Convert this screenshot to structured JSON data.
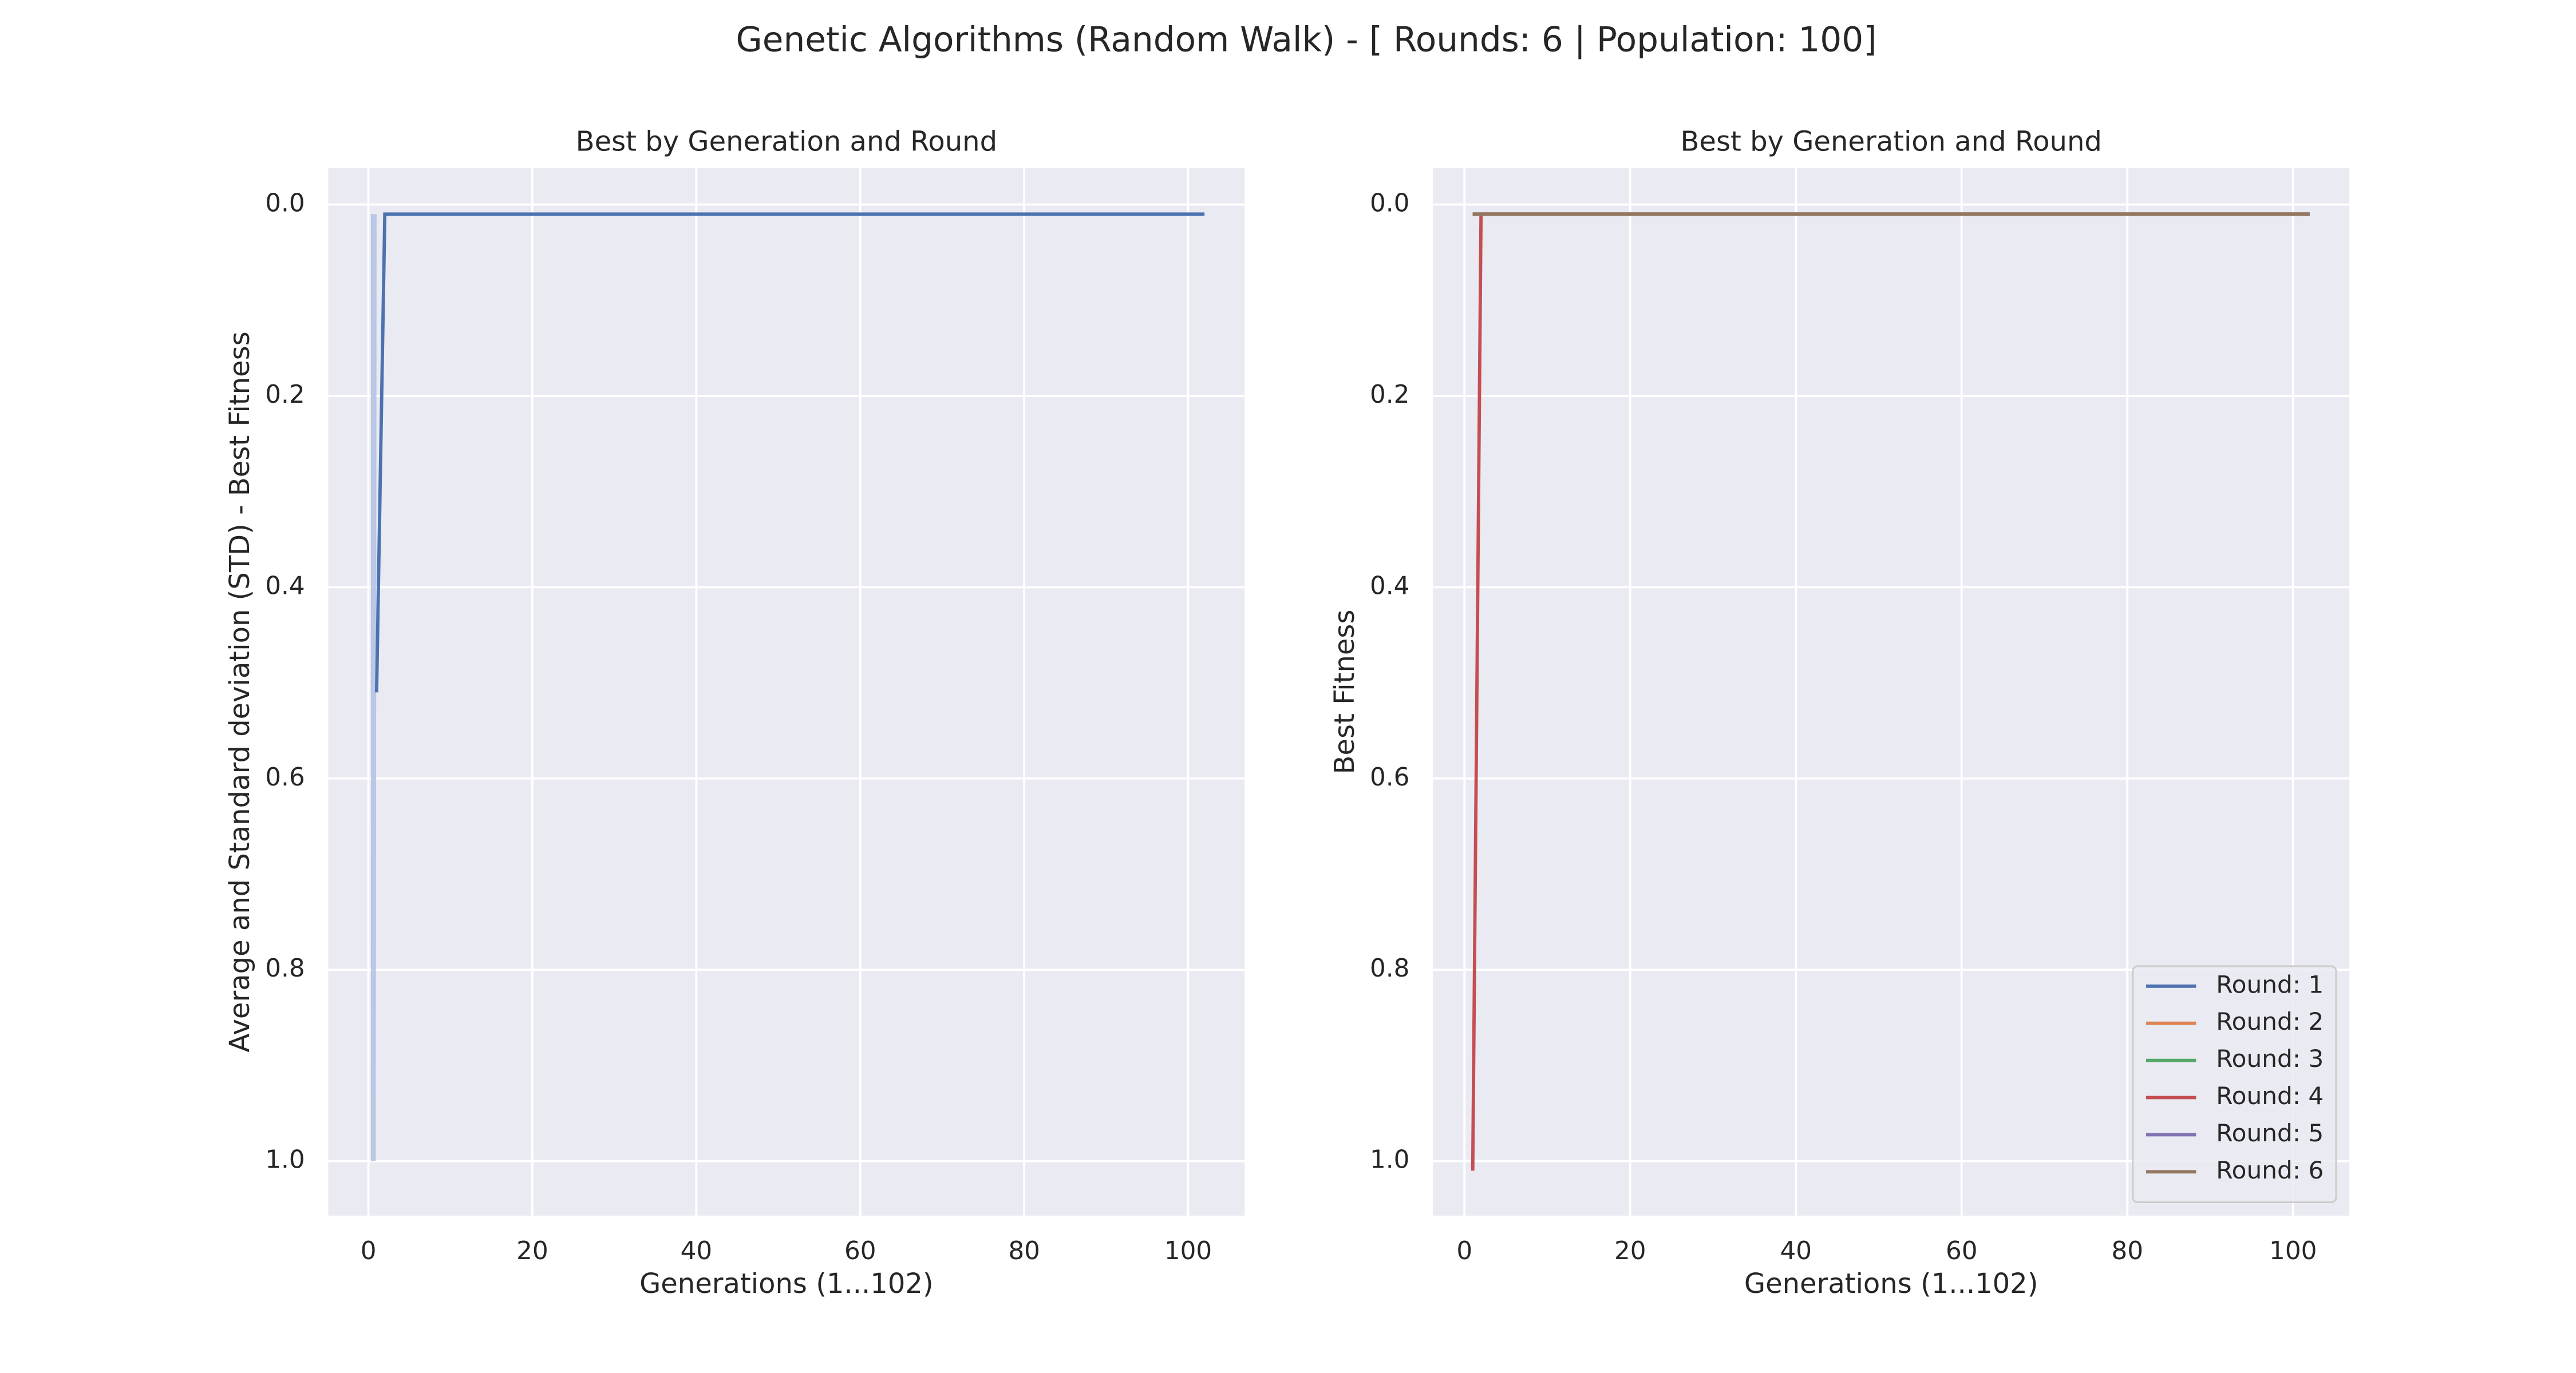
{
  "title": "Genetic Algorithms (Random Walk) - [ Rounds: 6 | Population: 100]",
  "chart_data": [
    {
      "type": "line",
      "title": "Best by Generation and Round",
      "x_label": "Generations (1...102)",
      "y_label": "Average and Standard deviation (STD) - Best Fitness",
      "xlim": [
        -4.9,
        106.9
      ],
      "ylim": [
        1.057,
        -0.038
      ],
      "y_inverted": true,
      "xticks": [
        0,
        20,
        40,
        60,
        80,
        100
      ],
      "yticks": [
        {
          "value": 0,
          "label": "0.0"
        },
        0.2,
        0.4,
        0.6,
        0.8,
        {
          "value": 1,
          "label": "1.0"
        }
      ],
      "grid": true,
      "band": {
        "color": "#b5c4e4",
        "x": [
          0.3,
          0.9,
          1.0,
          102
        ],
        "lower": [
          0.01,
          0.01,
          0.01,
          0.01
        ],
        "upper": [
          1.0,
          1.0,
          0.01,
          0.01
        ]
      },
      "series": [
        {
          "color": "#4c72b0",
          "x": [
            1,
            2,
            102
          ],
          "values": [
            0.51,
            0.01,
            0.01
          ]
        }
      ]
    },
    {
      "type": "line",
      "title": "Best by Generation and Round",
      "x_label": "Generations (1...102)",
      "y_label": "Best Fitness",
      "xlim": [
        -3.8,
        106.8
      ],
      "ylim": [
        1.057,
        -0.038
      ],
      "y_inverted": true,
      "xticks": [
        0,
        20,
        40,
        60,
        80,
        100
      ],
      "yticks": [
        {
          "value": 0,
          "label": "0.0"
        },
        0.2,
        0.4,
        0.6,
        0.8,
        {
          "value": 1,
          "label": "1.0"
        }
      ],
      "grid": true,
      "legend": "lower right",
      "series": [
        {
          "name": "Round: 1",
          "color": "#4c72b0",
          "x": [
            1,
            102
          ],
          "values": [
            0.01,
            0.01
          ]
        },
        {
          "name": "Round: 2",
          "color": "#dd8452",
          "x": [
            1,
            102
          ],
          "values": [
            0.01,
            0.01
          ]
        },
        {
          "name": "Round: 3",
          "color": "#55a868",
          "x": [
            1,
            102
          ],
          "values": [
            0.01,
            0.01
          ]
        },
        {
          "name": "Round: 4",
          "color": "#c44e52",
          "x": [
            1,
            2,
            102
          ],
          "values": [
            1.01,
            0.01,
            0.01
          ]
        },
        {
          "name": "Round: 5",
          "color": "#8172b3",
          "x": [
            1,
            102
          ],
          "values": [
            0.01,
            0.01
          ]
        },
        {
          "name": "Round: 6",
          "color": "#937860",
          "x": [
            1,
            102
          ],
          "values": [
            0.01,
            0.01
          ]
        }
      ]
    }
  ]
}
